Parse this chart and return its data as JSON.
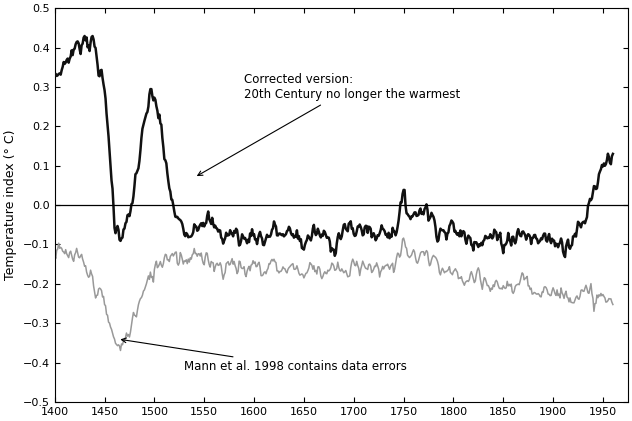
{
  "ylabel": "Temperature index (° C)",
  "xlim": [
    1400,
    1975
  ],
  "ylim": [
    -0.5,
    0.5
  ],
  "xticks": [
    1400,
    1450,
    1500,
    1550,
    1600,
    1650,
    1700,
    1750,
    1800,
    1850,
    1900,
    1950
  ],
  "yticks": [
    -0.5,
    -0.4,
    -0.3,
    -0.2,
    -0.1,
    0.0,
    0.1,
    0.2,
    0.3,
    0.4,
    0.5
  ],
  "corrected_color": "#111111",
  "mann_color": "#999999",
  "bg_color": "#ffffff",
  "annotation_corrected": "Corrected version:\n20th Century no longer the warmest",
  "annotation_mann": "Mann et al. 1998 contains data errors",
  "corrected_kx": [
    1400,
    1415,
    1425,
    1430,
    1435,
    1440,
    1445,
    1450,
    1455,
    1460,
    1465,
    1470,
    1475,
    1480,
    1485,
    1490,
    1495,
    1500,
    1505,
    1510,
    1515,
    1520,
    1530,
    1540,
    1550,
    1560,
    1570,
    1580,
    1590,
    1600,
    1610,
    1620,
    1630,
    1640,
    1650,
    1660,
    1670,
    1680,
    1690,
    1700,
    1710,
    1720,
    1730,
    1740,
    1750,
    1760,
    1770,
    1780,
    1790,
    1800,
    1810,
    1820,
    1830,
    1840,
    1850,
    1860,
    1870,
    1880,
    1890,
    1900,
    1910,
    1920,
    1930,
    1940,
    1950,
    1955,
    1960
  ],
  "corrected_ky": [
    0.32,
    0.38,
    0.41,
    0.43,
    0.42,
    0.4,
    0.35,
    0.28,
    0.15,
    -0.05,
    -0.07,
    -0.06,
    -0.04,
    0.05,
    0.12,
    0.2,
    0.27,
    0.28,
    0.22,
    0.12,
    0.05,
    -0.02,
    -0.07,
    -0.05,
    -0.03,
    -0.06,
    -0.08,
    -0.07,
    -0.09,
    -0.07,
    -0.09,
    -0.06,
    -0.08,
    -0.07,
    -0.1,
    -0.07,
    -0.08,
    -0.1,
    -0.06,
    -0.07,
    -0.05,
    -0.08,
    -0.06,
    -0.07,
    0.01,
    -0.03,
    0.0,
    -0.04,
    -0.07,
    -0.06,
    -0.08,
    -0.08,
    -0.09,
    -0.08,
    -0.09,
    -0.08,
    -0.07,
    -0.09,
    -0.08,
    -0.09,
    -0.1,
    -0.08,
    -0.05,
    0.04,
    0.1,
    0.13,
    0.12
  ],
  "mann_kx": [
    1400,
    1415,
    1425,
    1435,
    1445,
    1450,
    1455,
    1460,
    1465,
    1470,
    1480,
    1490,
    1500,
    1510,
    1520,
    1530,
    1540,
    1550,
    1560,
    1570,
    1580,
    1590,
    1600,
    1610,
    1620,
    1630,
    1640,
    1650,
    1660,
    1670,
    1680,
    1690,
    1700,
    1710,
    1720,
    1730,
    1740,
    1750,
    1760,
    1770,
    1780,
    1790,
    1800,
    1810,
    1820,
    1830,
    1840,
    1850,
    1860,
    1870,
    1880,
    1890,
    1900,
    1910,
    1920,
    1930,
    1940,
    1950,
    1960
  ],
  "mann_ky": [
    -0.12,
    -0.13,
    -0.14,
    -0.18,
    -0.22,
    -0.26,
    -0.3,
    -0.35,
    -0.36,
    -0.35,
    -0.28,
    -0.22,
    -0.16,
    -0.13,
    -0.12,
    -0.14,
    -0.12,
    -0.15,
    -0.14,
    -0.16,
    -0.14,
    -0.17,
    -0.15,
    -0.17,
    -0.14,
    -0.17,
    -0.15,
    -0.18,
    -0.15,
    -0.17,
    -0.16,
    -0.18,
    -0.16,
    -0.14,
    -0.17,
    -0.15,
    -0.16,
    -0.1,
    -0.14,
    -0.12,
    -0.15,
    -0.17,
    -0.18,
    -0.19,
    -0.19,
    -0.2,
    -0.21,
    -0.2,
    -0.21,
    -0.2,
    -0.21,
    -0.21,
    -0.22,
    -0.23,
    -0.22,
    -0.23,
    -0.23,
    -0.24,
    -0.25
  ]
}
